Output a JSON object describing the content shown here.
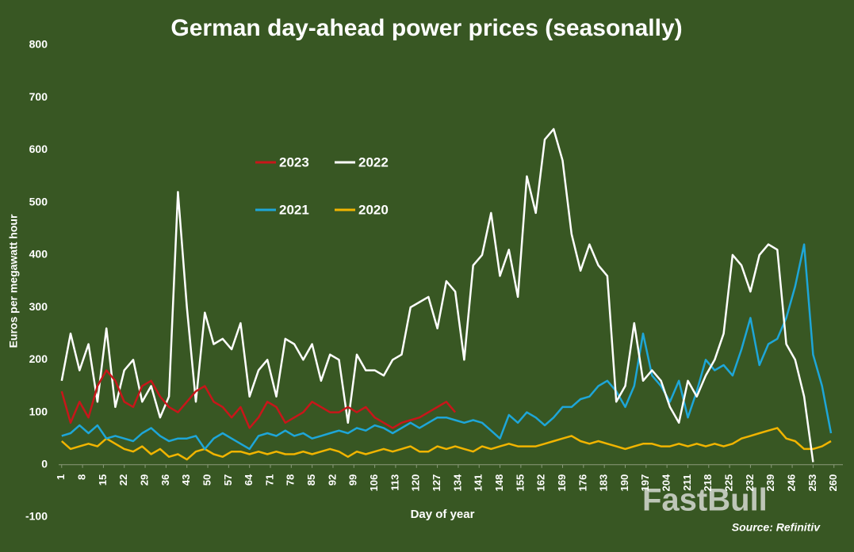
{
  "chart_data": {
    "type": "line",
    "title": "German day-ahead power prices (seasonally)",
    "y_label": "Euros per megawatt hour",
    "x_label": "Day of year",
    "source": "Source: Refinitiv",
    "watermark": "FastBull",
    "legend": "upper left",
    "xlim": [
      0,
      263
    ],
    "xticks": [
      1,
      8,
      15,
      22,
      29,
      36,
      43,
      50,
      57,
      64,
      71,
      78,
      85,
      92,
      99,
      106,
      113,
      120,
      127,
      134,
      141,
      148,
      155,
      162,
      169,
      176,
      183,
      190,
      197,
      204,
      211,
      218,
      225,
      232,
      239,
      246,
      253,
      260
    ],
    "ylim": [
      -100,
      800
    ],
    "yticks": [
      -100,
      0,
      100,
      200,
      300,
      400,
      500,
      600,
      700,
      800
    ],
    "x": [
      1,
      4,
      7,
      10,
      13,
      16,
      19,
      22,
      25,
      28,
      31,
      34,
      37,
      40,
      43,
      46,
      49,
      52,
      55,
      58,
      61,
      64,
      67,
      70,
      73,
      76,
      79,
      82,
      85,
      88,
      91,
      94,
      97,
      100,
      103,
      106,
      109,
      112,
      115,
      118,
      121,
      124,
      127,
      130,
      133,
      136,
      139,
      142,
      145,
      148,
      151,
      154,
      157,
      160,
      163,
      166,
      169,
      172,
      175,
      178,
      181,
      184,
      187,
      190,
      193,
      196,
      199,
      202,
      205,
      208,
      211,
      214,
      217,
      220,
      223,
      226,
      229,
      232,
      235,
      238,
      241,
      244,
      247,
      250,
      253,
      256,
      259
    ],
    "series": [
      {
        "name": "2023",
        "color": "#c8161a",
        "values": [
          140,
          80,
          120,
          90,
          150,
          180,
          160,
          120,
          110,
          150,
          160,
          130,
          110,
          100,
          120,
          140,
          150,
          120,
          110,
          90,
          110,
          70,
          90,
          120,
          110,
          80,
          90,
          100,
          120,
          110,
          100,
          100,
          110,
          100,
          110,
          90,
          80,
          70,
          80,
          85,
          90,
          100,
          110,
          120,
          100,
          null,
          null,
          null,
          null,
          null,
          null,
          null,
          null,
          null,
          null,
          null,
          null,
          null,
          null,
          null,
          null,
          null,
          null,
          null,
          null,
          null,
          null,
          null,
          null,
          null,
          null,
          null,
          null,
          null,
          null,
          null,
          null,
          null,
          null,
          null,
          null,
          null,
          null,
          null,
          null,
          null,
          null
        ]
      },
      {
        "name": "2022",
        "color": "#ffffff",
        "values": [
          160,
          250,
          180,
          230,
          120,
          260,
          110,
          180,
          200,
          120,
          150,
          90,
          130,
          520,
          300,
          120,
          290,
          230,
          240,
          220,
          270,
          130,
          180,
          200,
          130,
          240,
          230,
          200,
          230,
          160,
          210,
          200,
          80,
          210,
          180,
          180,
          170,
          200,
          210,
          300,
          310,
          320,
          260,
          350,
          330,
          200,
          380,
          400,
          480,
          360,
          410,
          320,
          550,
          480,
          620,
          640,
          580,
          440,
          370,
          420,
          380,
          360,
          120,
          150,
          270,
          160,
          180,
          160,
          110,
          80,
          160,
          130,
          170,
          200,
          250,
          400,
          380,
          330,
          400,
          420,
          410,
          230,
          200,
          130,
          5,
          null,
          null
        ]
      },
      {
        "name": "2021",
        "color": "#1ea6d8",
        "values": [
          55,
          60,
          75,
          60,
          75,
          50,
          55,
          50,
          45,
          60,
          70,
          55,
          45,
          50,
          50,
          55,
          30,
          50,
          60,
          50,
          40,
          30,
          55,
          60,
          55,
          65,
          55,
          60,
          50,
          55,
          60,
          65,
          60,
          70,
          65,
          75,
          70,
          60,
          70,
          80,
          70,
          80,
          90,
          90,
          85,
          80,
          85,
          80,
          65,
          50,
          95,
          80,
          100,
          90,
          75,
          90,
          110,
          110,
          125,
          130,
          150,
          160,
          140,
          110,
          150,
          250,
          170,
          150,
          120,
          160,
          90,
          140,
          200,
          180,
          190,
          170,
          220,
          280,
          190,
          230,
          240,
          280,
          340,
          420,
          210,
          150,
          60
        ]
      },
      {
        "name": "2020",
        "color": "#f0b400",
        "values": [
          45,
          30,
          35,
          40,
          35,
          50,
          40,
          30,
          25,
          35,
          20,
          30,
          15,
          20,
          10,
          25,
          30,
          20,
          15,
          25,
          25,
          20,
          25,
          20,
          25,
          20,
          20,
          25,
          20,
          25,
          30,
          25,
          15,
          25,
          20,
          25,
          30,
          25,
          30,
          35,
          25,
          25,
          35,
          30,
          35,
          30,
          25,
          35,
          30,
          35,
          40,
          35,
          35,
          35,
          40,
          45,
          50,
          55,
          45,
          40,
          45,
          40,
          35,
          30,
          35,
          40,
          40,
          35,
          35,
          40,
          35,
          40,
          35,
          40,
          35,
          40,
          50,
          55,
          60,
          65,
          70,
          50,
          45,
          30,
          30,
          35,
          45
        ]
      }
    ]
  }
}
